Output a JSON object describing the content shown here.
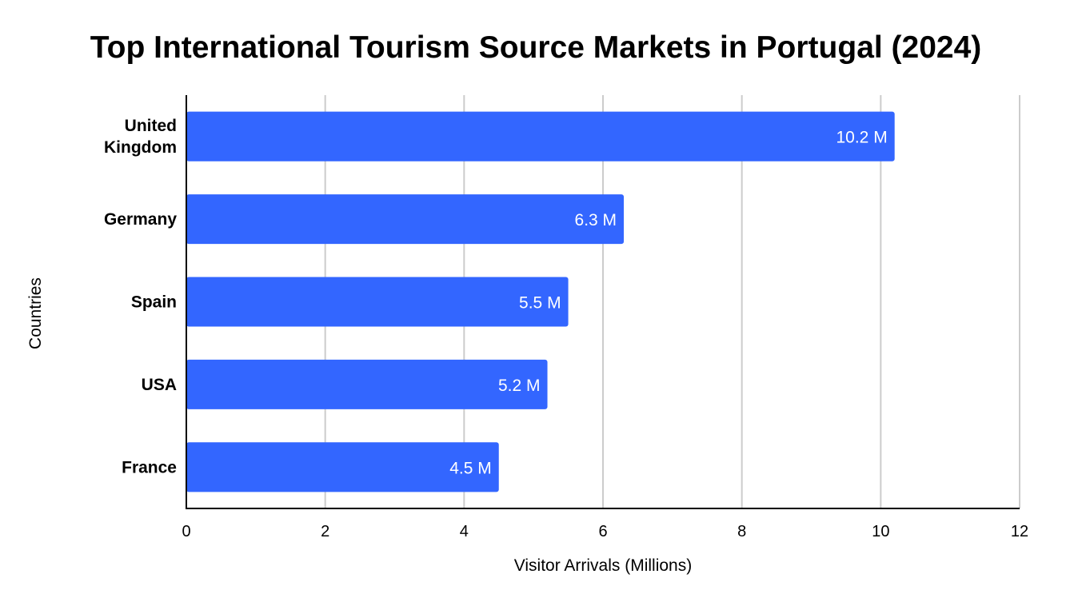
{
  "chart_data": {
    "type": "bar",
    "orientation": "horizontal",
    "title": "Top International Tourism Source Markets in Portugal (2024)",
    "xlabel": "Visitor Arrivals (Millions)",
    "ylabel": "Countries",
    "categories": [
      "United Kingdom",
      "Germany",
      "Spain",
      "USA",
      "France"
    ],
    "category_label_lines": [
      [
        "United",
        "Kingdom"
      ],
      [
        "Germany"
      ],
      [
        "Spain"
      ],
      [
        "USA"
      ],
      [
        "France"
      ]
    ],
    "values": [
      10.2,
      6.3,
      5.5,
      5.2,
      4.5
    ],
    "data_labels": [
      "10.2 M",
      "6.3 M",
      "5.5 M",
      "5.2 M",
      "4.5 M"
    ],
    "xlim": [
      0,
      12
    ],
    "x_ticks": [
      0,
      2,
      4,
      6,
      8,
      10,
      12
    ],
    "grid": "vertical",
    "legend": "none",
    "colors": {
      "bar": "#3366ff",
      "grid": "#cccccc",
      "axis": "#000000",
      "data_label": "#ffffff"
    }
  }
}
